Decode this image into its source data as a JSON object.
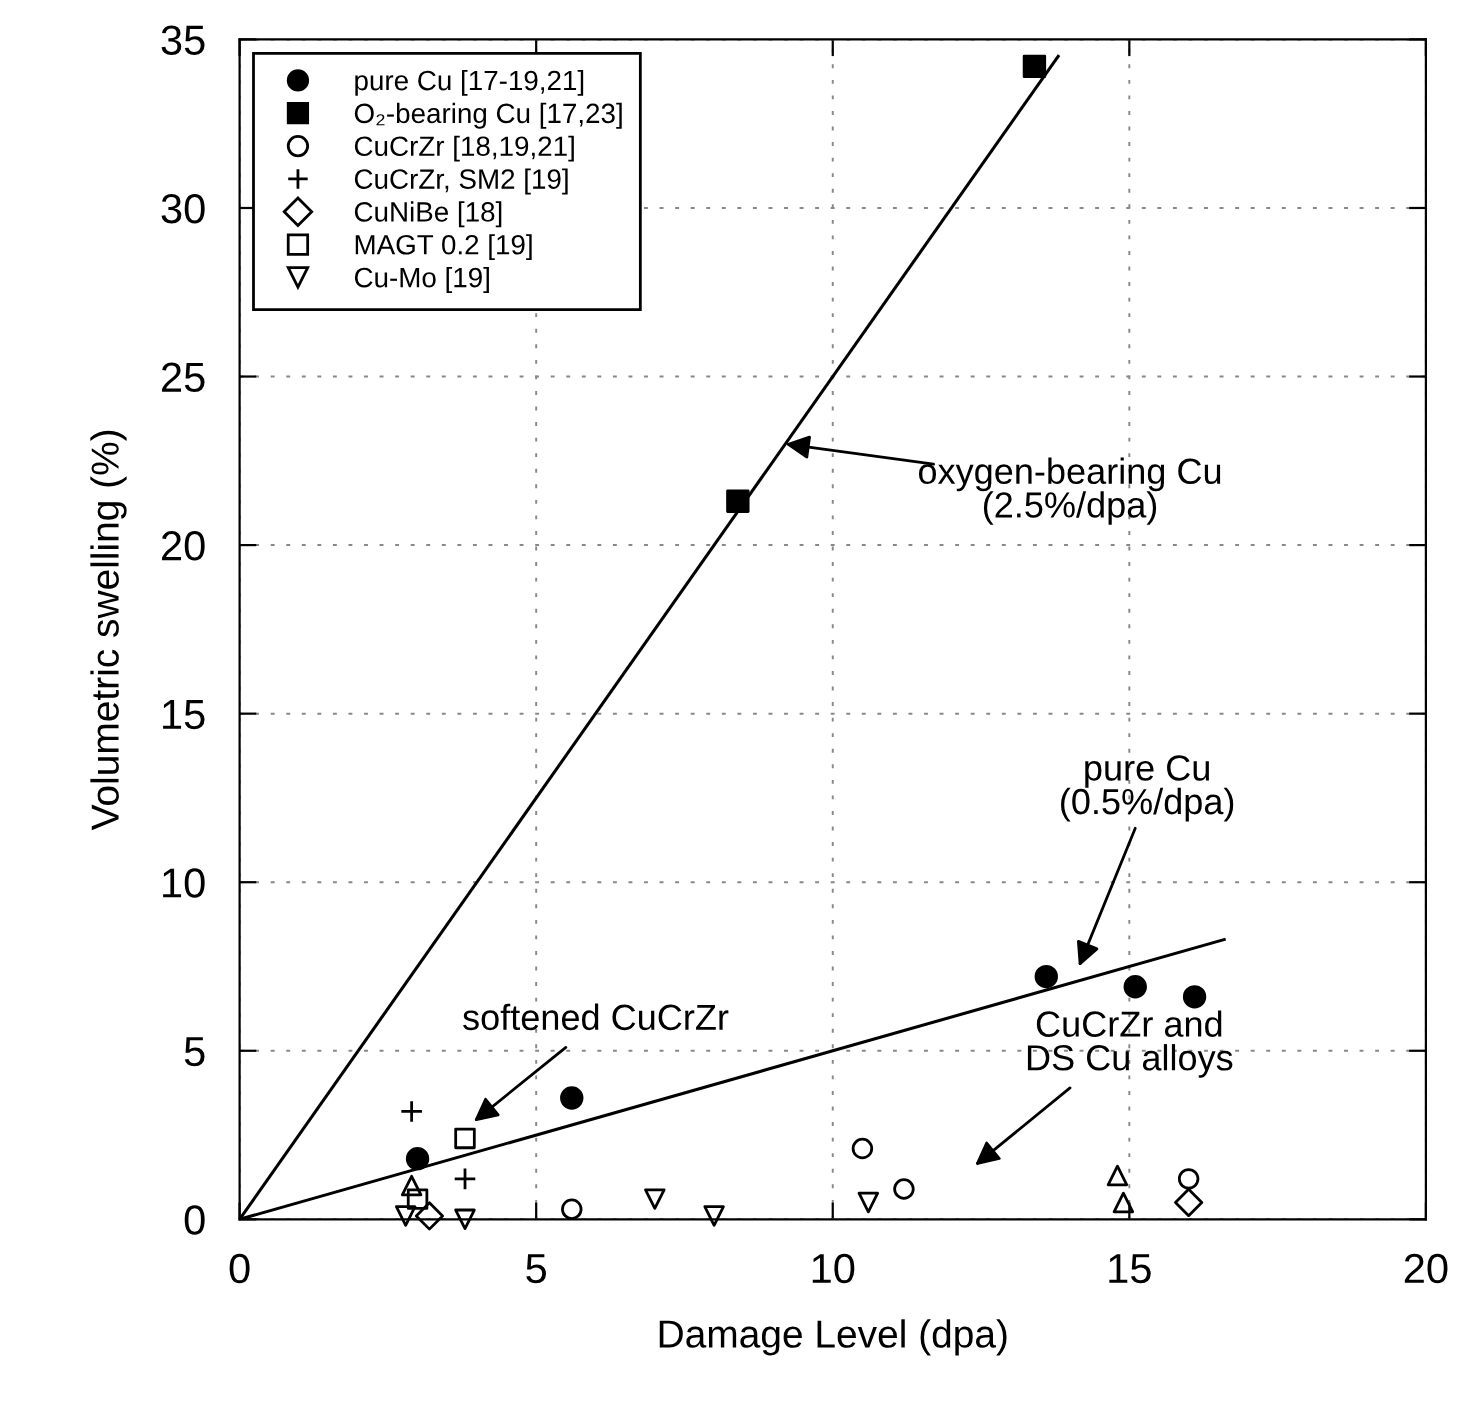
{
  "chart_data": {
    "type": "scatter",
    "xlabel": "Damage Level (dpa)",
    "ylabel": "Volumetric swelling (%)",
    "xlim": [
      0,
      20
    ],
    "ylim": [
      0,
      35
    ],
    "xticks": [
      0,
      5,
      10,
      15,
      20
    ],
    "yticks": [
      0,
      5,
      10,
      15,
      20,
      25,
      30,
      35
    ],
    "grid": true,
    "legend": "top left",
    "series": [
      {
        "name": "pure Cu [17-19,21]",
        "color": "#000000",
        "marker": "circle",
        "x": [
          3.0,
          5.6,
          13.6,
          15.1,
          16.1
        ],
        "values": [
          1.8,
          3.6,
          7.2,
          6.9,
          6.6
        ]
      },
      {
        "name": "O₂-bearing Cu [17,23]",
        "color": "#000000",
        "marker": "square",
        "x": [
          8.4,
          13.4
        ],
        "values": [
          21.3,
          34.2
        ]
      },
      {
        "name": "CuCrZr [18,19,21]",
        "color": "#000000",
        "marker": "circle",
        "x": [
          5.6,
          10.5,
          11.2,
          16.0
        ],
        "values": [
          0.3,
          2.1,
          0.9,
          1.2
        ]
      },
      {
        "name": "CuCrZr, SM2 [19]",
        "color": "#000000",
        "marker": "cross",
        "x": [
          2.9,
          3.8
        ],
        "values": [
          3.2,
          1.2
        ]
      },
      {
        "name": "CuNiBe [18]",
        "color": "#000000",
        "marker": "diamond",
        "x": [
          3.2,
          16.0
        ],
        "values": [
          0.1,
          0.5
        ]
      },
      {
        "color": "#000000",
        "marker": "triangle",
        "x": [
          2.9,
          14.8,
          14.9
        ],
        "values": [
          1.0,
          1.3,
          0.5
        ]
      },
      {
        "name": "MAGT 0.2 [19]",
        "color": "#000000",
        "marker": "square",
        "x": [
          3.8,
          3.0
        ],
        "values": [
          2.4,
          0.6
        ]
      },
      {
        "name": "Cu-Mo [19]",
        "color": "#000000",
        "marker": "triangle_down",
        "x": [
          2.8,
          3.8,
          7.0,
          8.0,
          10.6
        ],
        "values": [
          0.1,
          0.0,
          0.6,
          0.1,
          0.5
        ]
      },
      {
        "type": "line",
        "color": "#000000",
        "marker": "none",
        "x": [
          0,
          13.8
        ],
        "values": [
          0,
          34.5
        ]
      },
      {
        "type": "line",
        "color": "#000000",
        "marker": "none",
        "x": [
          0,
          16.6
        ],
        "values": [
          0,
          8.3
        ]
      }
    ],
    "annotations": [
      {
        "text": "oxygen-bearing Cu\n(2.5%/dpa)",
        "x": 9.2,
        "y": 23.0
      },
      "pure Cu\n(0.5%/dpa)",
      "softened CuCrZr",
      "CuCrZr and\nDS Cu alloys"
    ]
  }
}
